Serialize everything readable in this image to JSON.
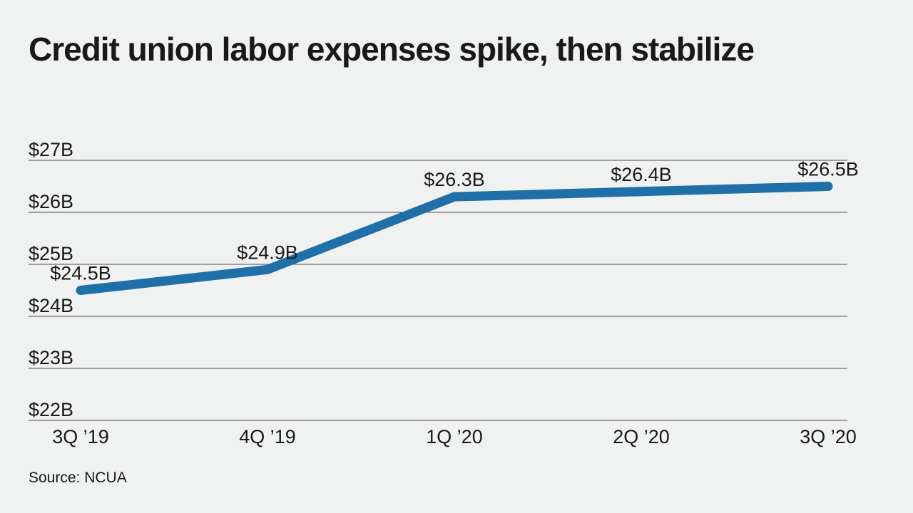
{
  "header": {
    "title": "Credit union labor expenses spike, then stabilize"
  },
  "footer": {
    "source": "Source: NCUA"
  },
  "colors": {
    "background": "#f0f1f1",
    "text": "#191919",
    "gridline": "#4b4b4b",
    "line": "#1f6fa8"
  },
  "chart_data": {
    "type": "line",
    "title": "Credit union labor expenses spike, then stabilize",
    "categories": [
      "3Q ’19",
      "4Q ’19",
      "1Q ’20",
      "2Q ’20",
      "3Q ’20"
    ],
    "series": [
      {
        "name": "Credit union labor expenses",
        "values": [
          24.5,
          24.9,
          26.3,
          26.4,
          26.5
        ],
        "point_labels": [
          "$24.5B",
          "$24.9B",
          "$26.3B",
          "$26.4B",
          "$26.5B"
        ],
        "color": "#1f6fa8"
      }
    ],
    "y_ticks": [
      {
        "value": 27,
        "label": "$27B"
      },
      {
        "value": 26,
        "label": "$26B"
      },
      {
        "value": 25,
        "label": "$25B"
      },
      {
        "value": 24,
        "label": "$24B"
      },
      {
        "value": 23,
        "label": "$23B"
      },
      {
        "value": 22,
        "label": "$22B"
      }
    ],
    "ylim": [
      22,
      27
    ],
    "xlabel": "",
    "ylabel": "",
    "grid": "horizontal",
    "legend_position": "none",
    "source": "Source: NCUA"
  }
}
